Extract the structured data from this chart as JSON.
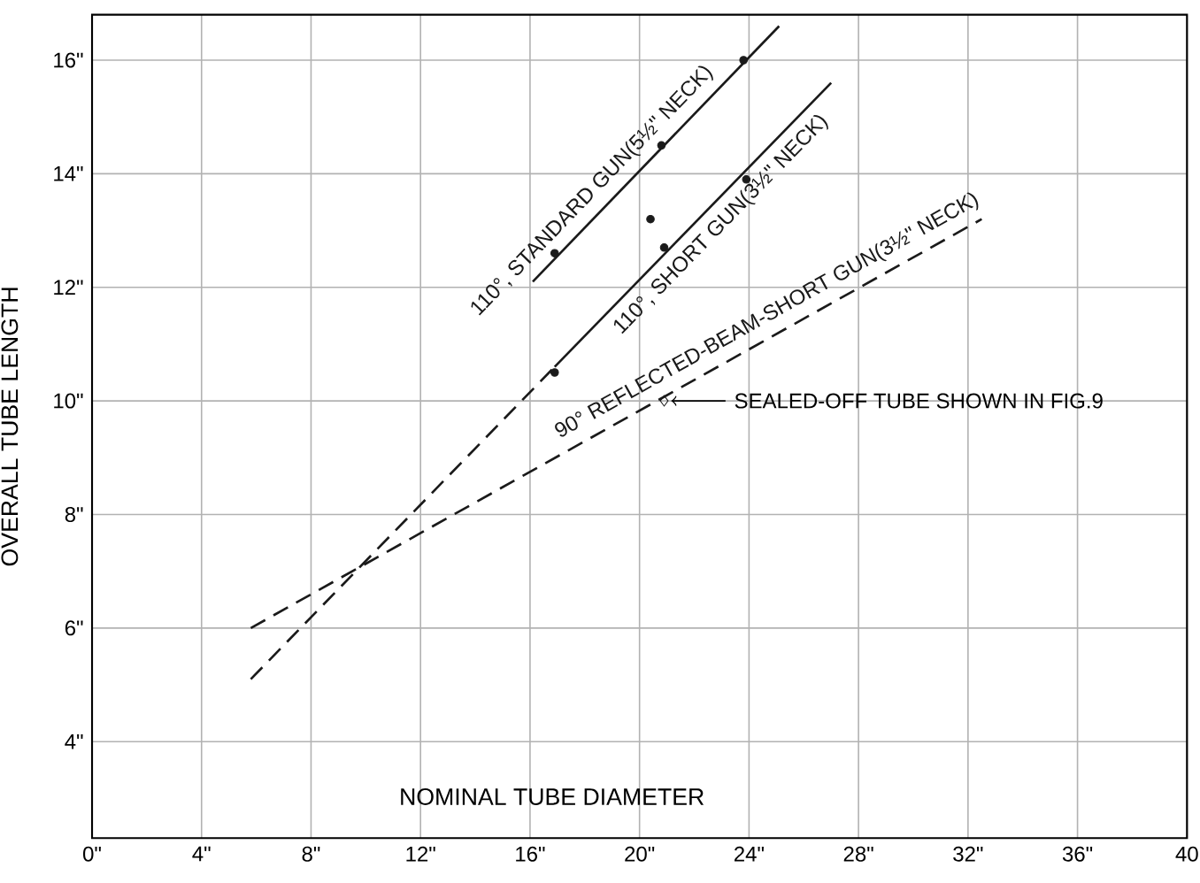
{
  "chart_data": {
    "type": "line",
    "xlabel": "NOMINAL TUBE DIAMETER",
    "ylabel": "OVERALL TUBE LENGTH",
    "xlim": [
      0,
      40
    ],
    "ylim": [
      2.3,
      16.8
    ],
    "xticks": [
      {
        "value": 0,
        "label": "0\""
      },
      {
        "value": 4,
        "label": "4\""
      },
      {
        "value": 8,
        "label": "8\""
      },
      {
        "value": 12,
        "label": "12\""
      },
      {
        "value": 16,
        "label": "16\""
      },
      {
        "value": 20,
        "label": "20\""
      },
      {
        "value": 24,
        "label": "24\""
      },
      {
        "value": 28,
        "label": "28\""
      },
      {
        "value": 32,
        "label": "32\""
      },
      {
        "value": 36,
        "label": "36\""
      },
      {
        "value": 40,
        "label": "40"
      }
    ],
    "yticks": [
      {
        "value": 4,
        "label": "4\""
      },
      {
        "value": 6,
        "label": "6\""
      },
      {
        "value": 8,
        "label": "8\""
      },
      {
        "value": 10,
        "label": "10\""
      },
      {
        "value": 12,
        "label": "12\""
      },
      {
        "value": 14,
        "label": "14\""
      },
      {
        "value": 16,
        "label": "16\""
      }
    ],
    "grid": true,
    "series": [
      {
        "name": "110°, STANDARD GUN(5½\" NECK)",
        "color": "#1a1a1a",
        "line_style": "solid",
        "marker": "none",
        "x": [
          16.1,
          25.1
        ],
        "values": [
          12.1,
          16.6
        ]
      },
      {
        "type": "scatter",
        "color": "#1a1a1a",
        "marker": "circle",
        "x": [
          16.9,
          20.8,
          23.8
        ],
        "values": [
          12.6,
          14.5,
          16.0
        ]
      },
      {
        "name": "110°, SHORT GUN(3½\" NECK)",
        "color": "#1a1a1a",
        "line_style": "solid",
        "marker": "none",
        "x": [
          16.9,
          27.0
        ],
        "values": [
          10.6,
          15.6
        ]
      },
      {
        "color": "#1a1a1a",
        "line_style": "dashed",
        "marker": "none",
        "x": [
          5.8,
          16.9
        ],
        "values": [
          5.1,
          10.6
        ]
      },
      {
        "type": "scatter",
        "color": "#1a1a1a",
        "marker": "circle",
        "x": [
          16.9,
          20.4,
          20.9,
          23.9
        ],
        "values": [
          10.5,
          13.2,
          12.7,
          13.9
        ]
      },
      {
        "name": "90° REFLECTED-BEAM-SHORT GUN(3½\" NECK)",
        "color": "#1a1a1a",
        "line_style": "dashed",
        "marker": "none",
        "x": [
          5.8,
          32.5
        ],
        "values": [
          6.0,
          13.2
        ]
      },
      {
        "type": "scatter",
        "color": "#1a1a1a",
        "marker": "diamond",
        "x": [
          20.9
        ],
        "values": [
          10.0
        ]
      }
    ],
    "annotations": [
      {
        "text": "SEALED-OFF TUBE SHOWN IN FIG.9",
        "x": 20.9,
        "y": 10.0
      }
    ]
  }
}
